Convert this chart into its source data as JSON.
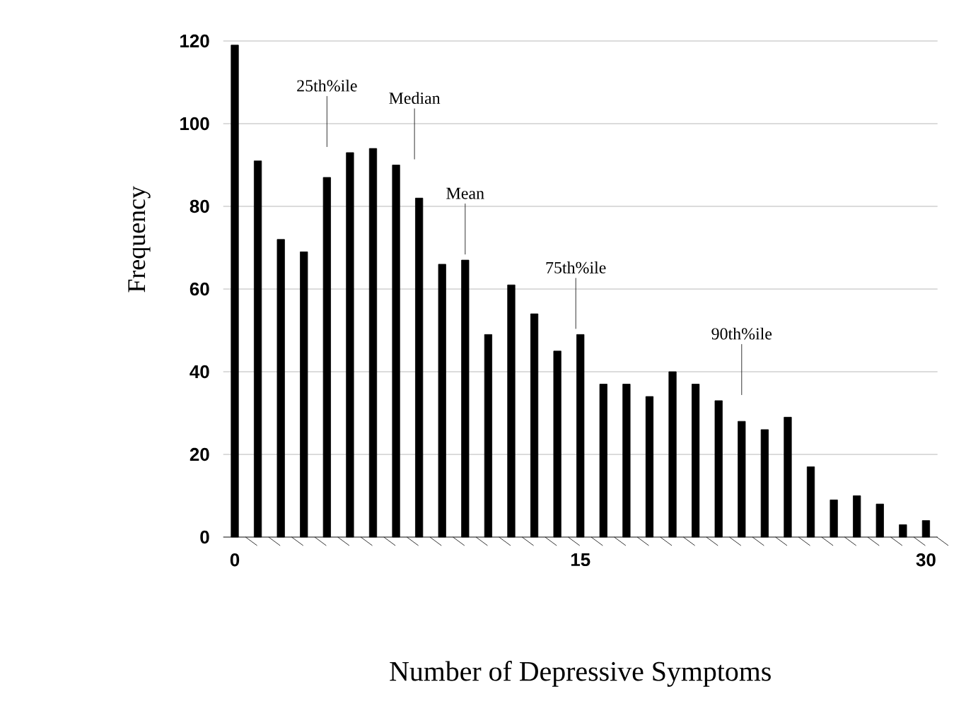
{
  "chart_data": {
    "type": "bar",
    "xlabel": "Number of Depressive Symptoms",
    "ylabel": "Frequency",
    "x": [
      0,
      1,
      2,
      3,
      4,
      5,
      6,
      7,
      8,
      9,
      10,
      11,
      12,
      13,
      14,
      15,
      16,
      17,
      18,
      19,
      20,
      21,
      22,
      23,
      24,
      25,
      26,
      27,
      28,
      29,
      30
    ],
    "values": [
      119,
      91,
      72,
      69,
      87,
      93,
      94,
      90,
      82,
      66,
      67,
      49,
      61,
      54,
      45,
      49,
      37,
      37,
      34,
      40,
      37,
      33,
      28,
      26,
      29,
      17,
      9,
      10,
      8,
      3,
      4
    ],
    "color": "#000000",
    "xlim": [
      -0.5,
      30.5
    ],
    "xticks": [
      0,
      15,
      30
    ],
    "ylim": [
      0,
      120
    ],
    "yticks": [
      0,
      20,
      40,
      60,
      80,
      100,
      120
    ],
    "grid": "y",
    "ref_lines": [
      {
        "axis": "x",
        "value": 4,
        "label": "25th%ile"
      },
      {
        "axis": "x",
        "value": 7.8,
        "label": "Median"
      },
      {
        "axis": "x",
        "value": 10,
        "label": "Mean"
      },
      {
        "axis": "x",
        "value": 14.8,
        "label": "75th%ile"
      },
      {
        "axis": "x",
        "value": 22,
        "label": "90th%ile"
      }
    ]
  }
}
